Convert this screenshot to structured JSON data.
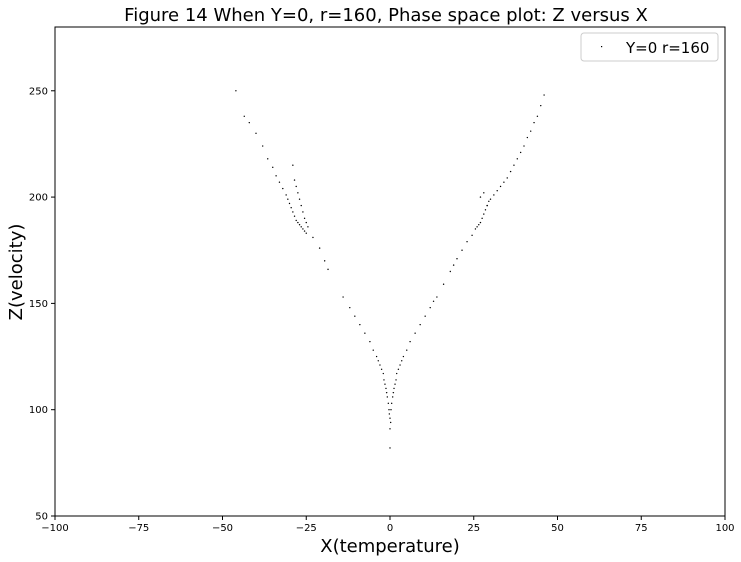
{
  "chart_data": {
    "type": "scatter",
    "title": "Figure 14 When Y=0, r=160, Phase space plot: Z versus X",
    "xlabel": "X(temperature)",
    "ylabel": "Z(velocity)",
    "xlim": [
      -100,
      100
    ],
    "ylim": [
      50,
      280
    ],
    "xticks": [
      -100,
      -75,
      -50,
      -25,
      0,
      25,
      50,
      75,
      100
    ],
    "xtick_labels": [
      "−100",
      "−75",
      "−50",
      "−25",
      "0",
      "25",
      "50",
      "75",
      "100"
    ],
    "yticks": [
      50,
      100,
      150,
      200,
      250
    ],
    "ytick_labels": [
      "50",
      "100",
      "150",
      "200",
      "250"
    ],
    "grid": false,
    "legend_position": "top-right",
    "point_color": "#000000",
    "series": [
      {
        "name": "Y=0 r=160",
        "x": [
          -46,
          -43.5,
          -42,
          -40,
          -38,
          -36.5,
          -35,
          -34,
          -33,
          -32,
          -31,
          -30.5,
          -30,
          -29.5,
          -29,
          -28.5,
          -28,
          -27.5,
          -27,
          -26.5,
          -26,
          -25.5,
          -25,
          -29,
          -28.5,
          -28,
          -27.5,
          -27,
          -26.5,
          -26,
          -25.5,
          -25,
          -24.5,
          -23,
          -21,
          -19.5,
          -18.5,
          -14,
          -12,
          -10.5,
          -9,
          -7.5,
          -6,
          -5,
          -4,
          -3.5,
          -3,
          -2.5,
          -2,
          -1.8,
          -1.5,
          -1.2,
          -1,
          -0.8,
          -0.5,
          -0.3,
          0,
          0.3,
          0.5,
          0.8,
          1,
          1.2,
          1.5,
          1.8,
          2,
          2.5,
          3,
          3.5,
          4,
          5,
          6,
          7.5,
          9,
          10.5,
          12,
          13,
          14,
          16,
          18,
          19,
          20,
          21.5,
          23,
          24.5,
          25.5,
          26,
          26.5,
          27,
          27.5,
          28,
          28.5,
          29,
          29.5,
          27,
          28,
          29,
          30,
          31,
          32,
          33,
          34,
          35,
          36,
          37,
          38,
          39,
          40,
          41,
          42,
          43,
          44,
          45,
          46,
          0,
          0,
          0.2,
          -0.2
        ],
        "y": [
          250,
          238,
          235,
          230,
          224,
          218,
          214,
          210,
          207,
          204,
          201,
          199,
          197,
          195,
          193,
          191,
          189,
          188,
          187,
          186,
          185,
          184,
          183,
          215,
          208,
          205,
          202,
          199,
          196,
          193,
          190,
          188,
          186,
          181,
          176,
          170,
          166,
          153,
          148,
          144,
          140,
          136,
          132,
          128,
          125,
          123,
          121,
          119,
          117,
          114,
          112,
          110,
          108,
          106,
          103,
          100,
          96,
          100,
          103,
          106,
          108,
          110,
          112,
          114,
          117,
          119,
          121,
          123,
          125,
          128,
          132,
          136,
          140,
          144,
          148,
          151,
          153,
          159,
          165,
          168,
          171,
          175,
          179,
          182,
          185,
          186,
          187,
          188,
          190,
          192,
          194,
          196,
          198,
          200,
          202,
          196,
          199,
          201,
          203,
          205,
          207,
          209,
          212,
          215,
          218,
          221,
          224,
          228,
          231,
          235,
          238,
          243,
          248,
          91,
          82,
          94,
          98
        ]
      }
    ]
  }
}
